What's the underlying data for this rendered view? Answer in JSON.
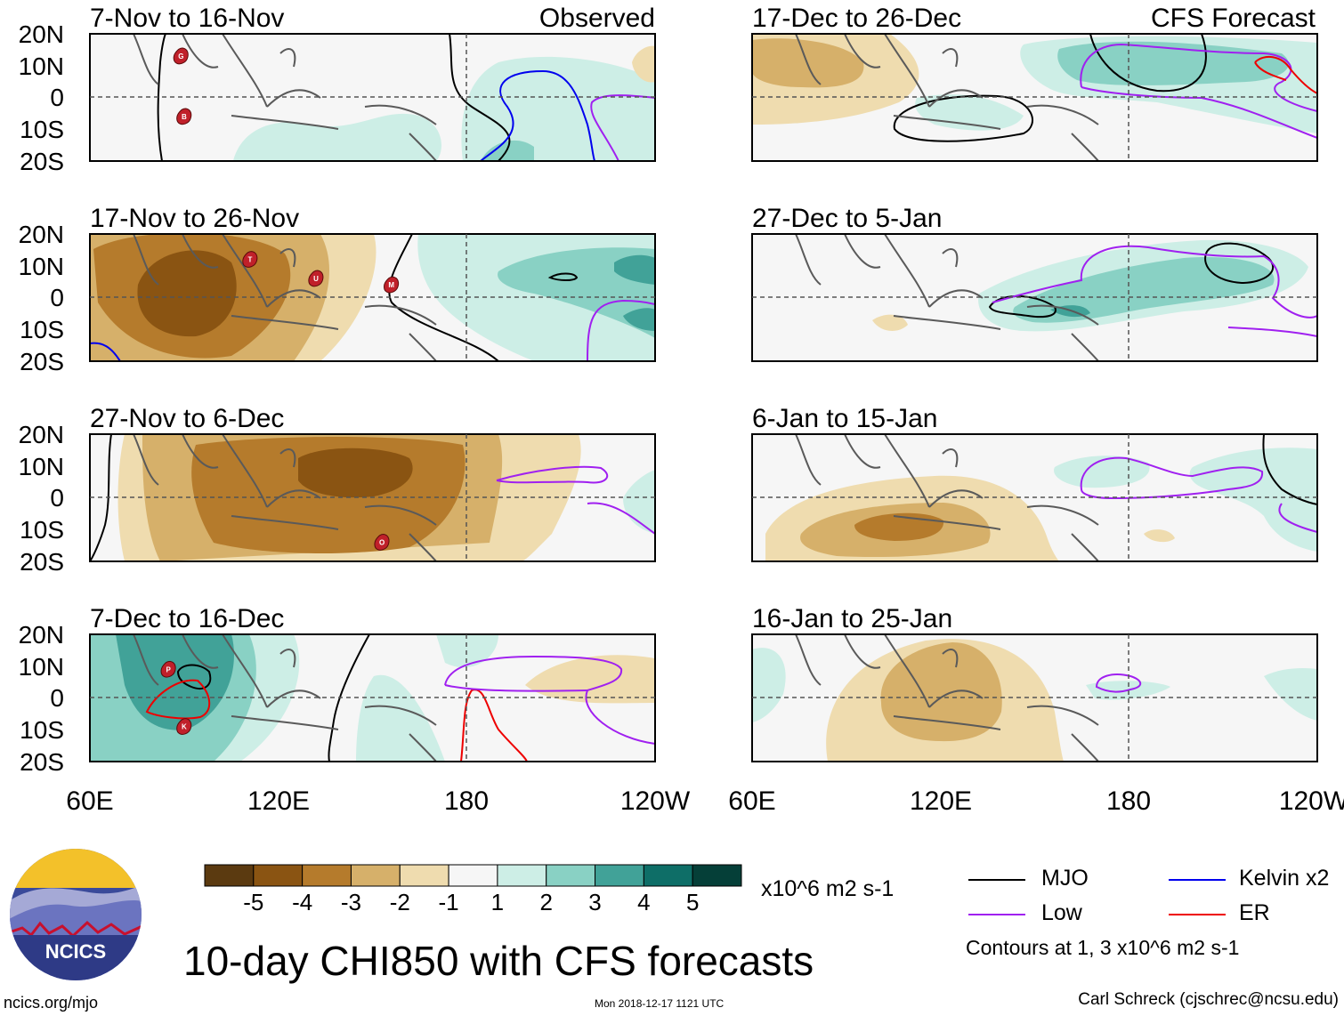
{
  "figure": {
    "title": "10-day CHI850 with CFS forecasts",
    "site": "ncics.org/mjo",
    "timestamp": "Mon 2018-12-17 1121 UTC",
    "author": "Carl Schreck (cjschrec@ncsu.edu)",
    "logo_text": "NCICS"
  },
  "colorbar": {
    "unit": "x10^6 m2 s-1",
    "ticks": [
      "-5",
      "-4",
      "-3",
      "-2",
      "-1",
      "1",
      "2",
      "3",
      "4",
      "5"
    ],
    "colors": [
      "#5b3a10",
      "#8a5412",
      "#b57b2c",
      "#d6b06a",
      "#efdcaf",
      "#f6f6f6",
      "#cdeee6",
      "#89d1c4",
      "#41a298",
      "#0e6e67",
      "#053f38"
    ]
  },
  "legend": {
    "items": [
      {
        "label": "MJO",
        "color": "#000000"
      },
      {
        "label": "Kelvin x2",
        "color": "#0000ee"
      },
      {
        "label": "Low",
        "color": "#a020f0"
      },
      {
        "label": "ER",
        "color": "#ee0000"
      }
    ],
    "contour_note": "Contours at 1, 3 x10^6 m2 s-1"
  },
  "chart_data": {
    "type": "heatmap",
    "variable": "10-day mean 850-hPa velocity potential anomaly (CHI850)",
    "lon_ticks": [
      "60E",
      "120E",
      "180",
      "120W"
    ],
    "lat_ticks": [
      "20N",
      "10N",
      "0",
      "10S",
      "20S"
    ],
    "lon_range": [
      60,
      240
    ],
    "lat_range": [
      -20,
      20
    ],
    "columns": [
      {
        "label": "Observed",
        "panels": [
          "7-Nov to 16-Nov",
          "17-Nov to 26-Nov",
          "27-Nov to 6-Dec",
          "7-Dec to 16-Dec"
        ]
      },
      {
        "label": "CFS Forecast",
        "panels": [
          "17-Dec to 26-Dec",
          "27-Dec to 5-Jan",
          "6-Jan to 15-Jan",
          "16-Jan to 25-Jan"
        ]
      }
    ],
    "storm_markers": [
      {
        "panel": "7-Nov to 16-Nov",
        "letter": "G",
        "lon": 89,
        "lat": 13
      },
      {
        "panel": "7-Nov to 16-Nov",
        "letter": "B",
        "lon": 90,
        "lat": -6
      },
      {
        "panel": "17-Nov to 26-Nov",
        "letter": "T",
        "lon": 111,
        "lat": 12
      },
      {
        "panel": "17-Nov to 26-Nov",
        "letter": "U",
        "lon": 132,
        "lat": 6
      },
      {
        "panel": "17-Nov to 26-Nov",
        "letter": "M",
        "lon": 156,
        "lat": 4
      },
      {
        "panel": "27-Nov to 6-Dec",
        "letter": "O",
        "lon": 153,
        "lat": -14
      },
      {
        "panel": "7-Dec to 16-Dec",
        "letter": "P",
        "lon": 85,
        "lat": 9
      },
      {
        "panel": "7-Dec to 16-Dec",
        "letter": "K",
        "lon": 90,
        "lat": -9
      }
    ]
  }
}
